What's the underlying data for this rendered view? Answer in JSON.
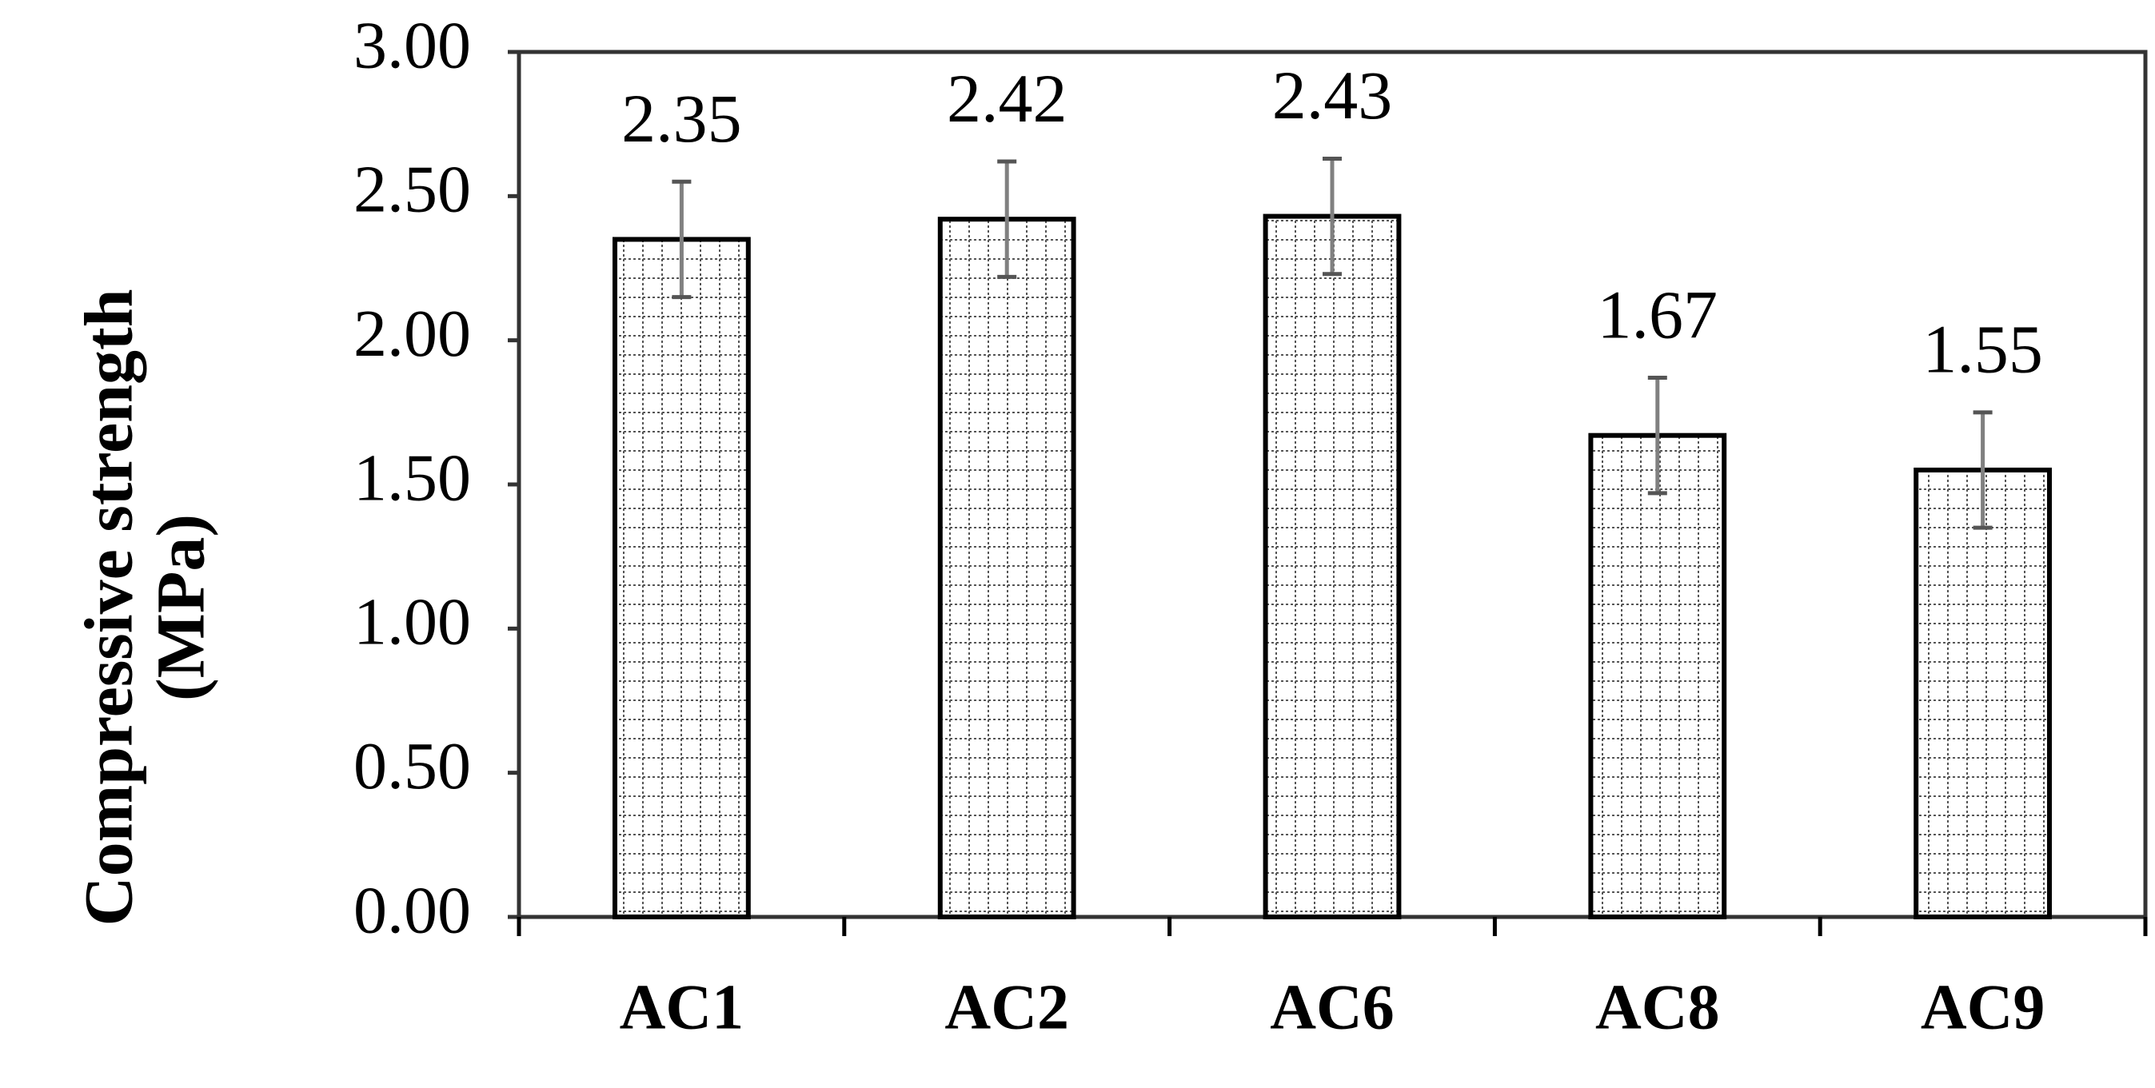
{
  "chart_data": {
    "type": "bar",
    "y_label_lines": [
      "Compressive strength",
      "(MPa)"
    ],
    "categories": [
      "AC1",
      "AC2",
      "AC6",
      "AC8",
      "AC9"
    ],
    "values": [
      2.35,
      2.42,
      2.43,
      1.67,
      1.55
    ],
    "value_labels": [
      "2.35",
      "2.42",
      "2.43",
      "1.67",
      "1.55"
    ],
    "errors": [
      0.2,
      0.2,
      0.2,
      0.2,
      0.2
    ],
    "color": "#000000",
    "error_color": "#808080",
    "ylim": [
      0,
      3
    ],
    "yticks": [
      {
        "value": 0,
        "label": "0.00"
      },
      {
        "value": 0.5,
        "label": "0.50"
      },
      {
        "value": 1,
        "label": "1.00"
      },
      {
        "value": 1.5,
        "label": "1.50"
      },
      {
        "value": 2,
        "label": "2.00"
      },
      {
        "value": 2.5,
        "label": "2.50"
      },
      {
        "value": 3,
        "label": "3.00"
      }
    ],
    "grid": false
  }
}
